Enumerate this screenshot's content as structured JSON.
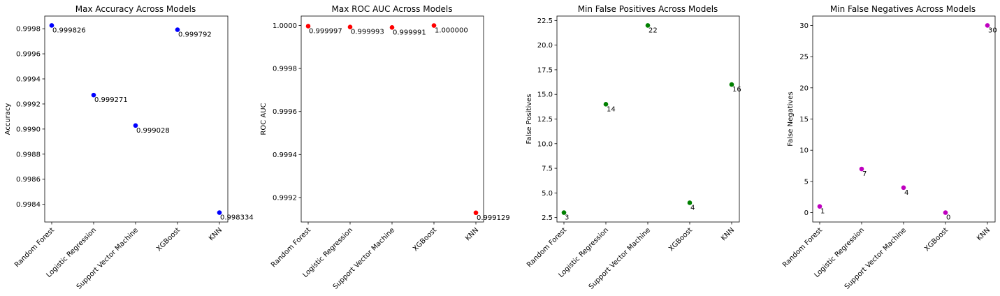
{
  "chart_data": [
    {
      "type": "scatter",
      "title": "Max Accuracy Across Models",
      "xlabel": "",
      "ylabel": "Accuracy",
      "categories": [
        "Random Forest",
        "Logistic Regression",
        "Support Vector Machine",
        "XGBoost",
        "KNN"
      ],
      "values": [
        0.999826,
        0.999271,
        0.999028,
        0.999792,
        0.998334
      ],
      "value_labels": [
        "0.999826",
        "0.999271",
        "0.999028",
        "0.999792",
        "0.998334"
      ],
      "yticks": [
        "0.9984",
        "0.9986",
        "0.9988",
        "0.9990",
        "0.9992",
        "0.9994",
        "0.9996",
        "0.9998"
      ],
      "ytick_values": [
        0.9984,
        0.9986,
        0.9988,
        0.999,
        0.9992,
        0.9994,
        0.9996,
        0.9998
      ],
      "ylim": [
        0.998259,
        0.999901
      ],
      "color": "#0000ff",
      "grid": false
    },
    {
      "type": "scatter",
      "title": "Max ROC AUC Across Models",
      "xlabel": "",
      "ylabel": "ROC AUC",
      "categories": [
        "Random Forest",
        "Logistic Regression",
        "Support Vector Machine",
        "XGBoost",
        "KNN"
      ],
      "values": [
        0.999997,
        0.999993,
        0.999991,
        1.0,
        0.999129
      ],
      "value_labels": [
        "0.999997",
        "0.999993",
        "0.999991",
        "1.000000",
        "0.999129"
      ],
      "yticks": [
        "0.9992",
        "0.9994",
        "0.9996",
        "0.9998",
        "1.0000"
      ],
      "ytick_values": [
        0.9992,
        0.9994,
        0.9996,
        0.9998,
        1.0
      ],
      "ylim": [
        0.999086,
        1.000044
      ],
      "color": "#ff0000",
      "grid": false
    },
    {
      "type": "scatter",
      "title": "Min False Positives Across Models",
      "xlabel": "",
      "ylabel": "False Positives",
      "categories": [
        "Random Forest",
        "Logistic Regression",
        "Support Vector Machine",
        "XGBoost",
        "KNN"
      ],
      "values": [
        3,
        14,
        22,
        4,
        16
      ],
      "value_labels": [
        "3",
        "14",
        "22",
        "4",
        "16"
      ],
      "yticks": [
        "2.5",
        "5.0",
        "7.5",
        "10.0",
        "12.5",
        "15.0",
        "17.5",
        "20.0",
        "22.5"
      ],
      "ytick_values": [
        2.5,
        5,
        7.5,
        10,
        12.5,
        15,
        17.5,
        20,
        22.5
      ],
      "ylim": [
        2.05,
        22.95
      ],
      "color": "#008000",
      "grid": false
    },
    {
      "type": "scatter",
      "title": "Min False Negatives Across Models",
      "xlabel": "",
      "ylabel": "False Negatives",
      "categories": [
        "Random Forest",
        "Logistic Regression",
        "Support Vector Machine",
        "XGBoost",
        "KNN"
      ],
      "values": [
        1,
        7,
        4,
        0,
        30
      ],
      "value_labels": [
        "1",
        "7",
        "4",
        "0",
        "30"
      ],
      "yticks": [
        "0",
        "5",
        "10",
        "15",
        "20",
        "25",
        "30"
      ],
      "ytick_values": [
        0,
        5,
        10,
        15,
        20,
        25,
        30
      ],
      "ylim": [
        -1.5,
        31.5
      ],
      "color": "#bf00bf",
      "grid": false
    }
  ]
}
